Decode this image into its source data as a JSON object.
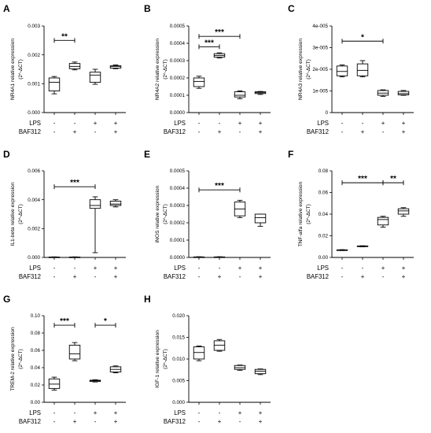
{
  "figure": {
    "condition_rows": [
      "LPS",
      "BAF312"
    ],
    "condition_signs": [
      [
        "-",
        "-",
        "+",
        "+"
      ],
      [
        "-",
        "+",
        "-",
        "+"
      ]
    ]
  },
  "chart_data": [
    {
      "type": "box",
      "panel": "A",
      "ylabel": "NR4A1 relative expression",
      "ylabel_unit": "(2^-ΔCT)",
      "ylim": [
        0,
        0.003
      ],
      "yticks": [
        "0.000",
        "0.001",
        "0.002",
        "0.003"
      ],
      "groups": [
        {
          "lps": "-",
          "baf312": "-",
          "min": 0.00065,
          "q1": 0.00075,
          "median": 0.00105,
          "q3": 0.0012,
          "max": 0.00125
        },
        {
          "lps": "-",
          "baf312": "+",
          "min": 0.00148,
          "q1": 0.00152,
          "median": 0.0016,
          "q3": 0.0017,
          "max": 0.00175
        },
        {
          "lps": "+",
          "baf312": "-",
          "min": 0.00098,
          "q1": 0.00105,
          "median": 0.0013,
          "q3": 0.0014,
          "max": 0.0015
        },
        {
          "lps": "+",
          "baf312": "+",
          "min": 0.00152,
          "q1": 0.00154,
          "median": 0.0016,
          "q3": 0.00162,
          "max": 0.00165
        }
      ],
      "significance": [
        {
          "from": 0,
          "to": 1,
          "label": "**",
          "y": 0.0025
        }
      ]
    },
    {
      "type": "box",
      "panel": "B",
      "ylabel": "NR4A2 relative expression",
      "ylabel_unit": "(2^-ΔCT)",
      "ylim": [
        0,
        0.0005
      ],
      "yticks": [
        "0.0000",
        "0.0001",
        "0.0002",
        "0.0003",
        "0.0004",
        "0.0005"
      ],
      "groups": [
        {
          "lps": "-",
          "baf312": "-",
          "min": 0.00014,
          "q1": 0.00015,
          "median": 0.00018,
          "q3": 0.0002,
          "max": 0.00021
        },
        {
          "lps": "-",
          "baf312": "+",
          "min": 0.000315,
          "q1": 0.00032,
          "median": 0.00033,
          "q3": 0.00034,
          "max": 0.000345
        },
        {
          "lps": "+",
          "baf312": "-",
          "min": 8e-05,
          "q1": 9e-05,
          "median": 0.0001,
          "q3": 0.00012,
          "max": 0.000125
        },
        {
          "lps": "+",
          "baf312": "+",
          "min": 0.000105,
          "q1": 0.00011,
          "median": 0.000115,
          "q3": 0.00012,
          "max": 0.000122
        }
      ],
      "significance": [
        {
          "from": 0,
          "to": 2,
          "label": "***",
          "y": 0.00044
        },
        {
          "from": 0,
          "to": 1,
          "label": "***",
          "y": 0.00038
        }
      ]
    },
    {
      "type": "box",
      "panel": "C",
      "ylabel": "NR4A3 relative expression",
      "ylabel_unit": "(2^-ΔCT)",
      "ylim": [
        0,
        4e-05
      ],
      "yticks": [
        "0",
        "1e-005",
        "2e-005",
        "3e-005",
        "4e-005"
      ],
      "groups": [
        {
          "lps": "-",
          "baf312": "-",
          "min": 1.65e-05,
          "q1": 1.7e-05,
          "median": 1.9e-05,
          "q3": 2.15e-05,
          "max": 2.2e-05
        },
        {
          "lps": "-",
          "baf312": "+",
          "min": 1.65e-05,
          "q1": 1.7e-05,
          "median": 1.95e-05,
          "q3": 2.25e-05,
          "max": 2.4e-05
        },
        {
          "lps": "+",
          "baf312": "-",
          "min": 7.5e-06,
          "q1": 8e-06,
          "median": 9e-06,
          "q3": 1.02e-05,
          "max": 1.05e-05
        },
        {
          "lps": "+",
          "baf312": "+",
          "min": 8e-06,
          "q1": 8.2e-06,
          "median": 8.8e-06,
          "q3": 9.8e-06,
          "max": 1.02e-05
        }
      ],
      "significance": [
        {
          "from": 0,
          "to": 2,
          "label": "*",
          "y": 3.3e-05
        }
      ]
    },
    {
      "type": "box",
      "panel": "D",
      "ylabel": "IL1-beta relative expression",
      "ylabel_unit": "(2^-ΔCT)",
      "ylim": [
        0,
        0.006
      ],
      "yticks": [
        "0.000",
        "0.002",
        "0.004",
        "0.006"
      ],
      "groups": [
        {
          "lps": "-",
          "baf312": "-",
          "min": 0.0,
          "q1": 1e-05,
          "median": 2e-05,
          "q3": 3e-05,
          "max": 4e-05
        },
        {
          "lps": "-",
          "baf312": "+",
          "min": 0.0,
          "q1": 1e-05,
          "median": 2e-05,
          "q3": 3e-05,
          "max": 4e-05
        },
        {
          "lps": "+",
          "baf312": "-",
          "min": 0.00033,
          "q1": 0.0034,
          "median": 0.0036,
          "q3": 0.004,
          "max": 0.0042
        },
        {
          "lps": "+",
          "baf312": "+",
          "min": 0.0035,
          "q1": 0.0036,
          "median": 0.0037,
          "q3": 0.0039,
          "max": 0.004
        }
      ],
      "significance": [
        {
          "from": 0,
          "to": 2,
          "label": "***",
          "y": 0.0049
        }
      ]
    },
    {
      "type": "box",
      "panel": "E",
      "ylabel": "iNOS relative expression",
      "ylabel_unit": "(2^-ΔCT)",
      "ylim": [
        0,
        0.0005
      ],
      "yticks": [
        "0.0000",
        "0.0001",
        "0.0002",
        "0.0003",
        "0.0004",
        "0.0005"
      ],
      "groups": [
        {
          "lps": "-",
          "baf312": "-",
          "min": 0.0,
          "q1": 1e-06,
          "median": 2e-06,
          "q3": 3e-06,
          "max": 4e-06
        },
        {
          "lps": "-",
          "baf312": "+",
          "min": 0.0,
          "q1": 1e-06,
          "median": 2e-06,
          "q3": 3e-06,
          "max": 4e-06
        },
        {
          "lps": "+",
          "baf312": "-",
          "min": 0.00023,
          "q1": 0.00024,
          "median": 0.00028,
          "q3": 0.00032,
          "max": 0.00033
        },
        {
          "lps": "+",
          "baf312": "+",
          "min": 0.00018,
          "q1": 0.0002,
          "median": 0.00023,
          "q3": 0.00025,
          "max": 0.00025
        }
      ],
      "significance": [
        {
          "from": 0,
          "to": 2,
          "label": "***",
          "y": 0.00039
        }
      ]
    },
    {
      "type": "box",
      "panel": "F",
      "ylabel": "TNF-alfa relative expression",
      "ylabel_unit": "(2^-ΔCT)",
      "ylim": [
        0,
        0.08
      ],
      "yticks": [
        "0.00",
        "0.02",
        "0.04",
        "0.06",
        "0.08"
      ],
      "groups": [
        {
          "lps": "-",
          "baf312": "-",
          "min": 0.0064,
          "q1": 0.0066,
          "median": 0.0068,
          "q3": 0.007,
          "max": 0.0072
        },
        {
          "lps": "-",
          "baf312": "+",
          "min": 0.0098,
          "q1": 0.01,
          "median": 0.0103,
          "q3": 0.0106,
          "max": 0.0108
        },
        {
          "lps": "+",
          "baf312": "-",
          "min": 0.028,
          "q1": 0.03,
          "median": 0.035,
          "q3": 0.037,
          "max": 0.038
        },
        {
          "lps": "+",
          "baf312": "+",
          "min": 0.038,
          "q1": 0.04,
          "median": 0.043,
          "q3": 0.045,
          "max": 0.046
        }
      ],
      "significance": [
        {
          "from": 0,
          "to": 2,
          "label": "***",
          "y": 0.069
        },
        {
          "from": 2,
          "to": 3,
          "label": "**",
          "y": 0.069
        }
      ]
    },
    {
      "type": "box",
      "panel": "G",
      "ylabel": "TREM-2 relative expression",
      "ylabel_unit": "(2^-ΔCT)",
      "ylim": [
        0,
        0.1
      ],
      "yticks": [
        "0.00",
        "0.02",
        "0.04",
        "0.06",
        "0.08",
        "0.10"
      ],
      "groups": [
        {
          "lps": "-",
          "baf312": "-",
          "min": 0.014,
          "q1": 0.016,
          "median": 0.021,
          "q3": 0.027,
          "max": 0.029
        },
        {
          "lps": "-",
          "baf312": "+",
          "min": 0.048,
          "q1": 0.05,
          "median": 0.056,
          "q3": 0.066,
          "max": 0.069
        },
        {
          "lps": "+",
          "baf312": "-",
          "min": 0.0235,
          "q1": 0.024,
          "median": 0.025,
          "q3": 0.0255,
          "max": 0.026
        },
        {
          "lps": "+",
          "baf312": "+",
          "min": 0.034,
          "q1": 0.035,
          "median": 0.038,
          "q3": 0.041,
          "max": 0.042
        }
      ],
      "significance": [
        {
          "from": 0,
          "to": 1,
          "label": "***",
          "y": 0.089
        },
        {
          "from": 2,
          "to": 3,
          "label": "*",
          "y": 0.089
        }
      ]
    },
    {
      "type": "box",
      "panel": "H",
      "ylabel": "IGF-1 relative expression",
      "ylabel_unit": "(2^-ΔCT)",
      "ylim": [
        0,
        0.02
      ],
      "yticks": [
        "0.000",
        "0.005",
        "0.010",
        "0.015",
        "0.020"
      ],
      "groups": [
        {
          "lps": "-",
          "baf312": "-",
          "min": 0.0096,
          "q1": 0.01,
          "median": 0.0115,
          "q3": 0.0128,
          "max": 0.013
        },
        {
          "lps": "-",
          "baf312": "+",
          "min": 0.0118,
          "q1": 0.012,
          "median": 0.0132,
          "q3": 0.0142,
          "max": 0.0145
        },
        {
          "lps": "+",
          "baf312": "-",
          "min": 0.0074,
          "q1": 0.0076,
          "median": 0.008,
          "q3": 0.0085,
          "max": 0.0086
        },
        {
          "lps": "+",
          "baf312": "+",
          "min": 0.0064,
          "q1": 0.0066,
          "median": 0.0072,
          "q3": 0.0076,
          "max": 0.0077
        }
      ],
      "significance": []
    }
  ]
}
